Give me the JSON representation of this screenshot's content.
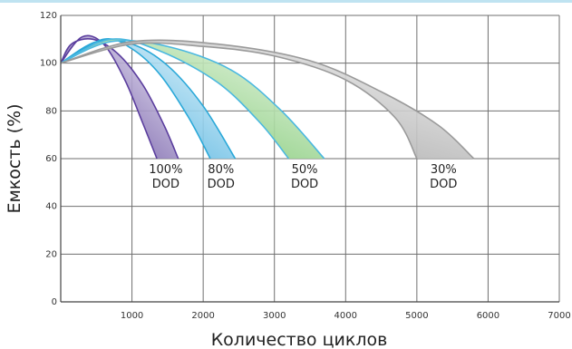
{
  "chart_data": {
    "type": "area",
    "xlabel": "Количество циклов",
    "ylabel": "Емкость (%)",
    "xlim": [
      0,
      7000
    ],
    "ylim": [
      0,
      120
    ],
    "x_ticks": [
      "1000",
      "2000",
      "3000",
      "4000",
      "5000",
      "6000",
      "7000"
    ],
    "y_ticks": [
      "0",
      "20",
      "40",
      "60",
      "80",
      "100",
      "120"
    ],
    "grid": true,
    "series": [
      {
        "name": "100% DOD",
        "labels": [
          "100%",
          "DOD"
        ],
        "color": "#5b3e9e",
        "fill_dark": "#4a2d8c",
        "fill_light": "#f2effa",
        "upper": [
          [
            0,
            100
          ],
          [
            300,
            111
          ],
          [
            600,
            108
          ],
          [
            900,
            93
          ],
          [
            1150,
            75
          ],
          [
            1350,
            60
          ]
        ],
        "lower": [
          [
            0,
            100
          ],
          [
            150,
            108
          ],
          [
            450,
            110
          ],
          [
            800,
            104
          ],
          [
            1150,
            91
          ],
          [
            1450,
            74
          ],
          [
            1650,
            60
          ]
        ]
      },
      {
        "name": "80% DOD",
        "labels": [
          "80%",
          "DOD"
        ],
        "color": "#2aa8d8",
        "fill_dark": "#1f9bd6",
        "fill_light": "#effafd",
        "upper": [
          [
            0,
            100
          ],
          [
            600,
            110
          ],
          [
            1000,
            106
          ],
          [
            1400,
            95
          ],
          [
            1800,
            77
          ],
          [
            2100,
            60
          ]
        ],
        "lower": [
          [
            0,
            100
          ],
          [
            500,
            109
          ],
          [
            1000,
            108
          ],
          [
            1500,
            99
          ],
          [
            2000,
            82
          ],
          [
            2450,
            60
          ]
        ]
      },
      {
        "name": "50% DOD",
        "labels": [
          "50%",
          "DOD"
        ],
        "color": "#4ab8e0",
        "fill_dark": "#59b84a",
        "fill_light": "#f0f9ec",
        "upper": [
          [
            0,
            100
          ],
          [
            700,
            110
          ],
          [
            1400,
            105
          ],
          [
            2200,
            92
          ],
          [
            2800,
            75
          ],
          [
            3200,
            60
          ]
        ],
        "lower": [
          [
            0,
            100
          ],
          [
            700,
            109
          ],
          [
            1500,
            107
          ],
          [
            2400,
            97
          ],
          [
            3100,
            80
          ],
          [
            3700,
            60
          ]
        ]
      },
      {
        "name": "30% DOD",
        "labels": [
          "30%",
          "DOD"
        ],
        "color": "#9a9a9a",
        "fill_dark": "#8d8d8d",
        "fill_light": "#f6f6f6",
        "upper": [
          [
            0,
            100
          ],
          [
            1000,
            108
          ],
          [
            2000,
            107
          ],
          [
            3000,
            103
          ],
          [
            4000,
            93
          ],
          [
            4700,
            77
          ],
          [
            5000,
            60
          ]
        ],
        "lower": [
          [
            0,
            100
          ],
          [
            1000,
            109
          ],
          [
            2200,
            108
          ],
          [
            3500,
            101
          ],
          [
            4500,
            88
          ],
          [
            5300,
            74
          ],
          [
            5800,
            60
          ]
        ]
      }
    ]
  }
}
